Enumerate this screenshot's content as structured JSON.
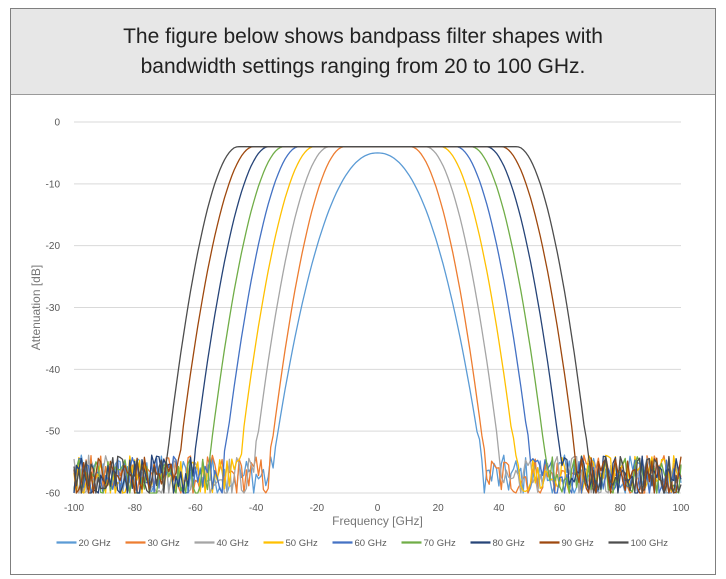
{
  "header": {
    "line1": "The figure below shows bandpass filter shapes with",
    "line2": "bandwidth settings ranging from 20 to 100 GHz."
  },
  "chart_data": {
    "type": "line",
    "xlabel": "Frequency [GHz]",
    "ylabel": "Attenuation [dB]",
    "xlim": [
      -100,
      100
    ],
    "ylim": [
      -60,
      0
    ],
    "xticks": [
      "-100",
      "-80",
      "-60",
      "-40",
      "-20",
      "0",
      "20",
      "40",
      "60",
      "80",
      "100"
    ],
    "yticks": [
      "0",
      "-10",
      "-20",
      "-30",
      "-40",
      "-50",
      "-60"
    ],
    "grid": "horizontal",
    "legend_position": "bottom",
    "noise_floor_db": -57,
    "series": [
      {
        "name": "20 GHz",
        "color": "#5b9bd5",
        "peak_db": -5,
        "edge_3db_ghz": 10,
        "edge_55db_ghz": 35
      },
      {
        "name": "30 GHz",
        "color": "#ed7d31",
        "peak_db": -4,
        "edge_3db_ghz": 15,
        "edge_55db_ghz": 36
      },
      {
        "name": "40 GHz",
        "color": "#a5a5a5",
        "peak_db": -4,
        "edge_3db_ghz": 20,
        "edge_55db_ghz": 41
      },
      {
        "name": "50 GHz",
        "color": "#ffc000",
        "peak_db": -4,
        "edge_3db_ghz": 25,
        "edge_55db_ghz": 46
      },
      {
        "name": "60 GHz",
        "color": "#4472c4",
        "peak_db": -4,
        "edge_3db_ghz": 30,
        "edge_55db_ghz": 51
      },
      {
        "name": "70 GHz",
        "color": "#70ad47",
        "peak_db": -4,
        "edge_3db_ghz": 35,
        "edge_55db_ghz": 56
      },
      {
        "name": "80 GHz",
        "color": "#264478",
        "peak_db": -4,
        "edge_3db_ghz": 40,
        "edge_55db_ghz": 61
      },
      {
        "name": "90 GHz",
        "color": "#9e480e",
        "peak_db": -4,
        "edge_3db_ghz": 45,
        "edge_55db_ghz": 66
      },
      {
        "name": "100 GHz",
        "color": "#4d4d4d",
        "peak_db": -4,
        "edge_3db_ghz": 50,
        "edge_55db_ghz": 70
      }
    ]
  }
}
